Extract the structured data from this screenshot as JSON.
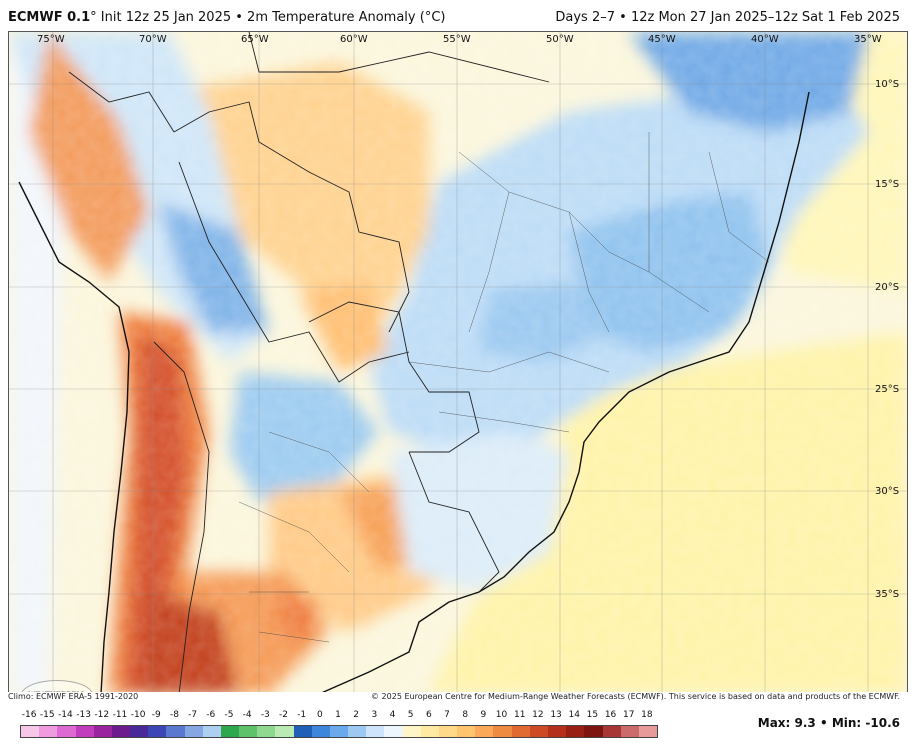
{
  "header": {
    "model": "ECMWF 0.1",
    "init": "° Init 12z 25 Jan 2025 • 2m Temperature Anomaly (°C)",
    "valid": "Days 2–7 • 12z Mon 27 Jan 2025–12z Sat 1 Feb 2025"
  },
  "map": {
    "lon_labels": [
      "75°W",
      "70°W",
      "65°W",
      "60°W",
      "55°W",
      "50°W",
      "45°W",
      "40°W",
      "35°W"
    ],
    "lat_labels": [
      "10°S",
      "15°S",
      "20°S",
      "25°S",
      "30°S",
      "35°S"
    ],
    "logo_text": "WEATHERBELL"
  },
  "footer": {
    "climo": "Climo: ECMWF ERA-5 1991-2020",
    "credit": "© 2025 European Centre for Medium-Range Weather Forecasts (ECMWF). This service is based on data and products of the ECMWF."
  },
  "colorbar": {
    "ticks": [
      "-16",
      "-15",
      "-14",
      "-13",
      "-12",
      "-11",
      "-10",
      "-9",
      "-8",
      "-7",
      "-6",
      "-5",
      "-4",
      "-3",
      "-2",
      "-1",
      "0",
      "1",
      "2",
      "3",
      "4",
      "5",
      "6",
      "7",
      "8",
      "9",
      "10",
      "11",
      "12",
      "13",
      "14",
      "15",
      "16",
      "17",
      "18"
    ],
    "colors": [
      "#f7c7e8",
      "#ee9be0",
      "#dd6ad2",
      "#c13dbd",
      "#9a239f",
      "#6d1a8e",
      "#4a2a9a",
      "#3d46b5",
      "#5b78d1",
      "#86a7e4",
      "#aed0f0",
      "#2ea84c",
      "#5ec26a",
      "#8fd88f",
      "#b9ebb2",
      "#1f5fb8",
      "#3d86dc",
      "#6aa9ec",
      "#9cc8f4",
      "#cde4fa",
      "#eef6fd",
      "#fff6c8",
      "#ffe9a3",
      "#ffd889",
      "#ffc56e",
      "#f9a957",
      "#ef8a41",
      "#e06a31",
      "#cc4a24",
      "#b5301a",
      "#971f14",
      "#7d1410",
      "#a83636",
      "#cc6b6b",
      "#e79a9a"
    ]
  },
  "stats": {
    "max_label": "Max",
    "max_value": "9.3",
    "min_label": "Min",
    "min_value": "-10.6"
  }
}
